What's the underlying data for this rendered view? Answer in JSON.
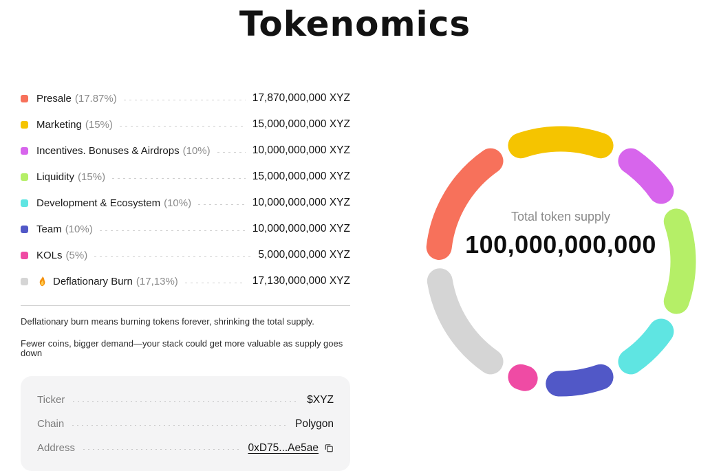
{
  "title": "Tokenomics",
  "legend": {
    "items": [
      {
        "label": "Presale",
        "pct": "(17.87%)",
        "value": "17,870,000,000 XYZ",
        "color": "#F7715B",
        "icon": null
      },
      {
        "label": "Marketing",
        "pct": "(15%)",
        "value": "15,000,000,000 XYZ",
        "color": "#F5C400",
        "icon": null
      },
      {
        "label": "Incentives. Bonuses & Airdrops",
        "pct": "(10%)",
        "value": "10,000,000,000 XYZ",
        "color": "#D765EC",
        "icon": null
      },
      {
        "label": "Liquidity",
        "pct": "(15%)",
        "value": "15,000,000,000 XYZ",
        "color": "#B5EF67",
        "icon": null
      },
      {
        "label": "Development & Ecosystem",
        "pct": "(10%)",
        "value": "10,000,000,000 XYZ",
        "color": "#5FE5E2",
        "icon": null
      },
      {
        "label": "Team",
        "pct": "(10%)",
        "value": "10,000,000,000 XYZ",
        "color": "#5158C7",
        "icon": null
      },
      {
        "label": "KOLs",
        "pct": "(5%)",
        "value": "5,000,000,000 XYZ",
        "color": "#EF4BA4",
        "icon": null
      },
      {
        "label": "Deflationary Burn",
        "pct": "(17,13%)",
        "value": "17,130,000,000 XYZ",
        "color": "#D5D5D5",
        "icon": "fire-icon"
      }
    ]
  },
  "notes": {
    "line1": "Deflationary burn means burning tokens forever, shrinking the total supply.",
    "line2": "Fewer coins, bigger demand—your stack could get more valuable as supply goes down"
  },
  "token_info": {
    "rows": [
      {
        "label": "Ticker",
        "value": "$XYZ",
        "is_link": false,
        "copy_icon": false
      },
      {
        "label": "Chain",
        "value": "Polygon",
        "is_link": false,
        "copy_icon": false
      },
      {
        "label": "Address",
        "value": "0xD75...Ae5ae",
        "is_link": true,
        "copy_icon": true
      }
    ]
  },
  "chart_data": {
    "type": "pie",
    "donut": true,
    "title": "",
    "categories": [
      "Presale",
      "Marketing",
      "Incentives. Bonuses & Airdrops",
      "Liquidity",
      "Development & Ecosystem",
      "Team",
      "KOLs",
      "Deflationary Burn"
    ],
    "values": [
      17.87,
      15,
      10,
      15,
      10,
      10,
      5,
      17.13
    ],
    "colors": [
      "#F7715B",
      "#F5C400",
      "#D765EC",
      "#B5EF67",
      "#5FE5E2",
      "#5158C7",
      "#EF4BA4",
      "#D5D5D5"
    ],
    "draw_order": [
      1,
      2,
      3,
      4,
      5,
      6,
      7,
      0
    ],
    "start_angle_deg": -27,
    "segment_gap_deg": 4,
    "center_label": "Total token supply",
    "center_value": "100,000,000,000",
    "legend_position": "left",
    "grid": false
  }
}
